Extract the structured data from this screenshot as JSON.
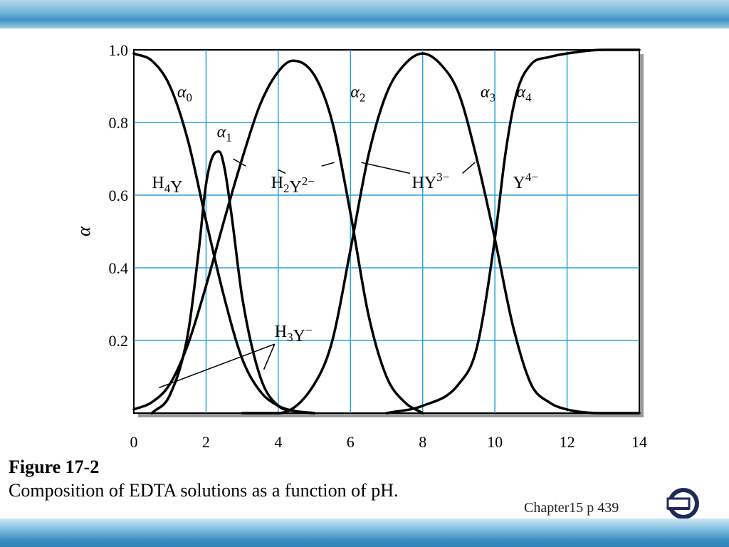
{
  "caption": {
    "title": "Figure 17-2",
    "description": "Composition of EDTA solutions as a function of pH."
  },
  "slide_ref": "Chapter15 p 439",
  "nav_icon": "return-arrow-icon",
  "colors": {
    "band": "#3f93c4",
    "grid": "#29a3de",
    "curve": "#000000",
    "frame": "#000000"
  },
  "chart_data": {
    "type": "line",
    "title": "",
    "xlabel": "",
    "ylabel": "α",
    "xlim": [
      0,
      14
    ],
    "ylim": [
      0,
      1.0
    ],
    "xticks": [
      "0",
      "2",
      "4",
      "6",
      "8",
      "10",
      "12",
      "14"
    ],
    "yticks": [
      "0.2",
      "0.4",
      "0.6",
      "0.8",
      "1.0"
    ],
    "grid": true,
    "series": [
      {
        "name": "α0",
        "x": [
          0.0,
          0.5,
          1.0,
          1.5,
          2.0,
          2.5,
          3.0,
          3.5,
          4.0,
          4.5,
          5.0
        ],
        "y": [
          0.99,
          0.97,
          0.9,
          0.75,
          0.53,
          0.32,
          0.15,
          0.06,
          0.02,
          0.005,
          0.0
        ]
      },
      {
        "name": "α1",
        "x": [
          0.5,
          1.0,
          1.5,
          1.8,
          2.0,
          2.2,
          2.36,
          2.5,
          2.7,
          3.0,
          3.5,
          4.0,
          4.5,
          5.0
        ],
        "y": [
          0.0,
          0.05,
          0.22,
          0.45,
          0.63,
          0.71,
          0.72,
          0.68,
          0.55,
          0.32,
          0.1,
          0.02,
          0.005,
          0.0
        ]
      },
      {
        "name": "α2",
        "x": [
          0.0,
          0.5,
          1.0,
          1.5,
          2.0,
          2.5,
          3.0,
          3.5,
          4.0,
          4.4,
          5.0,
          5.5,
          6.0,
          6.5,
          7.0,
          7.5,
          8.0
        ],
        "y": [
          0.01,
          0.03,
          0.08,
          0.19,
          0.35,
          0.53,
          0.7,
          0.85,
          0.94,
          0.97,
          0.93,
          0.8,
          0.55,
          0.27,
          0.1,
          0.03,
          0.0
        ]
      },
      {
        "name": "α3",
        "x": [
          3.0,
          4.0,
          5.0,
          5.5,
          6.0,
          6.5,
          7.0,
          7.5,
          8.0,
          8.5,
          9.0,
          9.5,
          10.0,
          10.5,
          11.0,
          11.5,
          12.0,
          13.0,
          14.0
        ],
        "y": [
          0.0,
          0.0,
          0.08,
          0.2,
          0.45,
          0.71,
          0.88,
          0.96,
          0.99,
          0.96,
          0.88,
          0.7,
          0.48,
          0.24,
          0.08,
          0.03,
          0.01,
          0.0,
          0.0
        ]
      },
      {
        "name": "α4",
        "x": [
          7.0,
          8.0,
          9.0,
          9.5,
          10.0,
          10.3,
          10.6,
          11.0,
          11.5,
          12.0,
          13.0,
          14.0
        ],
        "y": [
          0.0,
          0.02,
          0.08,
          0.18,
          0.48,
          0.72,
          0.88,
          0.96,
          0.98,
          0.99,
          1.0,
          1.0
        ]
      }
    ],
    "annotations": [
      {
        "id": "alpha0",
        "text": "α0",
        "x": 1.2,
        "y": 0.87
      },
      {
        "id": "alpha1",
        "text": "α1",
        "x": 2.3,
        "y": 0.76
      },
      {
        "id": "alpha2",
        "text": "α2",
        "x": 6.0,
        "y": 0.87
      },
      {
        "id": "alpha3",
        "text": "α3",
        "x": 9.6,
        "y": 0.87
      },
      {
        "id": "alpha4",
        "text": "α4",
        "x": 10.6,
        "y": 0.87
      },
      {
        "id": "h4y",
        "text": "H4Y",
        "x": 0.5,
        "y": 0.62
      },
      {
        "id": "h2y",
        "text": "H2Y2−",
        "x": 3.8,
        "y": 0.62
      },
      {
        "id": "hy",
        "text": "HY3−",
        "x": 7.7,
        "y": 0.62
      },
      {
        "id": "y4",
        "text": "Y4−",
        "x": 10.5,
        "y": 0.62
      },
      {
        "id": "h3y",
        "text": "H3Y−",
        "x": 3.9,
        "y": 0.21
      }
    ]
  }
}
